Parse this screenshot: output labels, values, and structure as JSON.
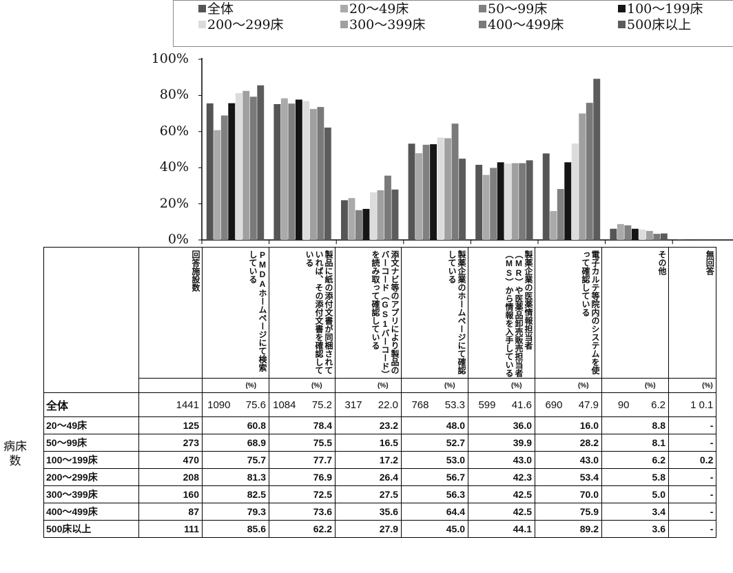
{
  "chart_data": {
    "type": "bar",
    "ylim": [
      0,
      100
    ],
    "yticks": [
      "0%",
      "20%",
      "40%",
      "60%",
      "80%",
      "100%"
    ],
    "categories": [
      "PMDAホームページにて検索している",
      "製品に紙の添付文書が同梱されていれば、その添付文書を確認している",
      "添文ナビ等のアプリにより製品のバーコード（GS1バーコード）を読み取って確認している",
      "製薬企業のホームページにて確認している",
      "製薬企業の医薬情報担当者（MR）や医薬品卸売販売担当者（MS）から情報を入手している",
      "電子カルテ等院内のシステムを使って確認している",
      "その他",
      "無回答"
    ],
    "series": [
      {
        "name": "全体",
        "color": "#555555",
        "values": [
          75.6,
          75.2,
          22.0,
          53.3,
          41.6,
          47.9,
          6.2,
          0.1
        ]
      },
      {
        "name": "20～49床",
        "color": "#aaaaaa",
        "values": [
          60.8,
          78.4,
          23.2,
          48.0,
          36.0,
          16.0,
          8.8,
          0
        ]
      },
      {
        "name": "50～99床",
        "color": "#808080",
        "values": [
          68.9,
          75.5,
          16.5,
          52.7,
          39.9,
          28.2,
          8.1,
          0
        ]
      },
      {
        "name": "100～199床",
        "color": "#151515",
        "values": [
          75.7,
          77.7,
          17.2,
          53.0,
          43.0,
          43.0,
          6.2,
          0.2
        ]
      },
      {
        "name": "200～299床",
        "color": "#dcdcdc",
        "values": [
          81.3,
          76.9,
          26.4,
          56.7,
          42.3,
          53.4,
          5.8,
          0
        ]
      },
      {
        "name": "300～399床",
        "color": "#a0a0a0",
        "values": [
          82.5,
          72.5,
          27.5,
          56.3,
          42.5,
          70.0,
          5.0,
          0
        ]
      },
      {
        "name": "400～499床",
        "color": "#7a7a7a",
        "values": [
          79.3,
          73.6,
          35.6,
          64.4,
          42.5,
          75.9,
          3.4,
          0
        ]
      },
      {
        "name": "500床以上",
        "color": "#5c5c5c",
        "values": [
          85.6,
          62.2,
          27.9,
          45.0,
          44.1,
          89.2,
          3.6,
          0
        ]
      }
    ],
    "legend": "top"
  },
  "table": {
    "header_count_label": "回答施設数",
    "col_headers": [
      "PMDAホームページにて検索している",
      "製品に紙の添付文書が同梱されていれば、その添付文書を確認している",
      "添文ナビ等のアプリにより製品のバーコード（GS1バーコード）を読み取って確認している",
      "製薬企業のホームページにて確認している",
      "製薬企業の医薬情報担当者（MR）や医薬品卸売販売担当者（MS）から情報を入手している",
      "電子カルテ等院内のシステムを使って確認している",
      "その他",
      "無回答"
    ],
    "pct_unit": "(%)",
    "total_row": {
      "label": "全体",
      "count": "1441",
      "cells": [
        {
          "n": "1090",
          "p": "75.6"
        },
        {
          "n": "1084",
          "p": "75.2"
        },
        {
          "n": "317",
          "p": "22.0"
        },
        {
          "n": "768",
          "p": "53.3"
        },
        {
          "n": "599",
          "p": "41.6"
        },
        {
          "n": "690",
          "p": "47.9"
        },
        {
          "n": "90",
          "p": "6.2"
        },
        {
          "n": "1",
          "p": "0.1"
        }
      ]
    },
    "rows": [
      {
        "label": "20～49床",
        "count": "125",
        "p": [
          "60.8",
          "78.4",
          "23.2",
          "48.0",
          "36.0",
          "16.0",
          "8.8",
          "-"
        ]
      },
      {
        "label": "50～99床",
        "count": "273",
        "p": [
          "68.9",
          "75.5",
          "16.5",
          "52.7",
          "39.9",
          "28.2",
          "8.1",
          "-"
        ]
      },
      {
        "label": "100～199床",
        "count": "470",
        "p": [
          "75.7",
          "77.7",
          "17.2",
          "53.0",
          "43.0",
          "43.0",
          "6.2",
          "0.2"
        ]
      },
      {
        "label": "200～299床",
        "count": "208",
        "p": [
          "81.3",
          "76.9",
          "26.4",
          "56.7",
          "42.3",
          "53.4",
          "5.8",
          "-"
        ]
      },
      {
        "label": "300～399床",
        "count": "160",
        "p": [
          "82.5",
          "72.5",
          "27.5",
          "56.3",
          "42.5",
          "70.0",
          "5.0",
          "-"
        ]
      },
      {
        "label": "400～499床",
        "count": "87",
        "p": [
          "79.3",
          "73.6",
          "35.6",
          "64.4",
          "42.5",
          "75.9",
          "3.4",
          "-"
        ]
      },
      {
        "label": "500床以上",
        "count": "111",
        "p": [
          "85.6",
          "62.2",
          "27.9",
          "45.0",
          "44.1",
          "89.2",
          "3.6",
          "-"
        ]
      }
    ]
  },
  "side_label": "病床数"
}
